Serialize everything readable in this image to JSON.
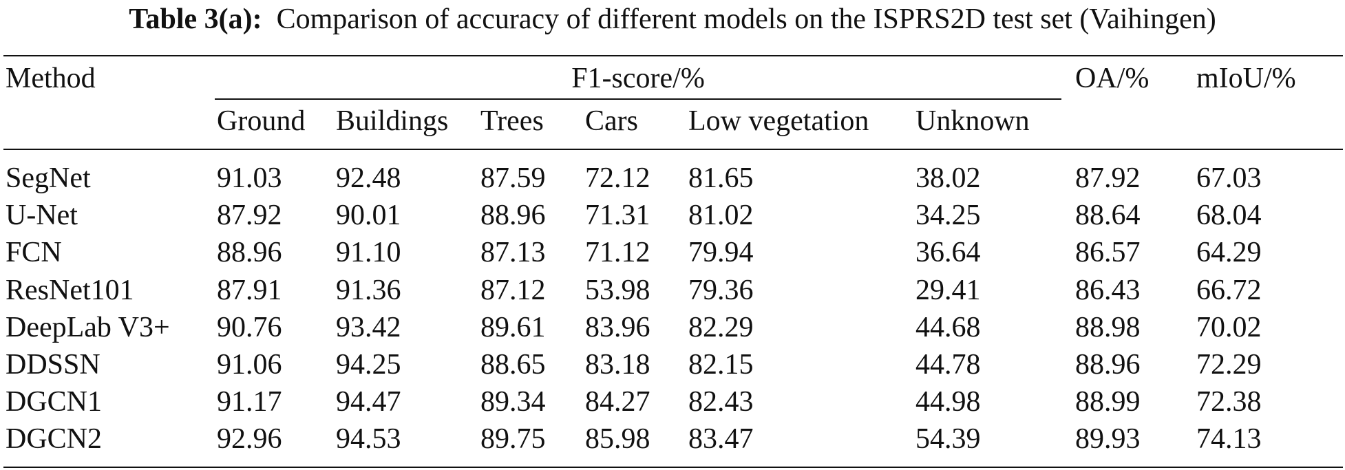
{
  "caption": {
    "lead": "Table 3(a):",
    "text": "Comparison of accuracy of different models on the ISPRS2D test set (Vaihingen)"
  },
  "header": {
    "method": "Method",
    "f1_group": "F1-score/%",
    "oa": "OA/%",
    "miou": "mIoU/%",
    "classes": [
      "Ground",
      "Buildings",
      "Trees",
      "Cars",
      "Low vegetation",
      "Unknown"
    ]
  },
  "rows": [
    {
      "method": "SegNet",
      "values": [
        "91.03",
        "92.48",
        "87.59",
        "72.12",
        "81.65",
        "38.02",
        "87.92",
        "67.03"
      ]
    },
    {
      "method": "U-Net",
      "values": [
        "87.92",
        "90.01",
        "88.96",
        "71.31",
        "81.02",
        "34.25",
        "88.64",
        "68.04"
      ]
    },
    {
      "method": "FCN",
      "values": [
        "88.96",
        "91.10",
        "87.13",
        "71.12",
        "79.94",
        "36.64",
        "86.57",
        "64.29"
      ]
    },
    {
      "method": "ResNet101",
      "values": [
        "87.91",
        "91.36",
        "87.12",
        "53.98",
        "79.36",
        "29.41",
        "86.43",
        "66.72"
      ]
    },
    {
      "method": "DeepLab V3+",
      "values": [
        "90.76",
        "93.42",
        "89.61",
        "83.96",
        "82.29",
        "44.68",
        "88.98",
        "70.02"
      ]
    },
    {
      "method": "DDSSN",
      "values": [
        "91.06",
        "94.25",
        "88.65",
        "83.18",
        "82.15",
        "44.78",
        "88.96",
        "72.29"
      ]
    },
    {
      "method": "DGCN1",
      "values": [
        "91.17",
        "94.47",
        "89.34",
        "84.27",
        "82.43",
        "44.98",
        "88.99",
        "72.38"
      ]
    },
    {
      "method": "DGCN2",
      "values": [
        "92.96",
        "94.53",
        "89.75",
        "85.98",
        "83.47",
        "54.39",
        "89.93",
        "74.13"
      ]
    }
  ]
}
